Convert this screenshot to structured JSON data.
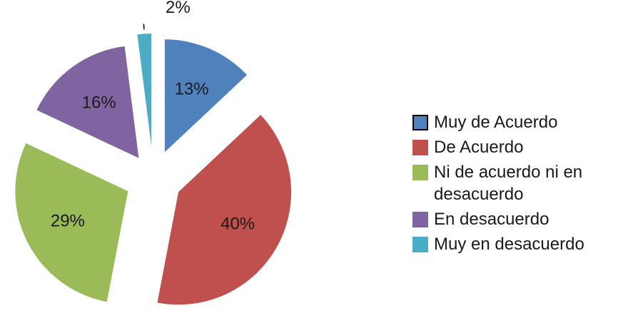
{
  "chart_data": {
    "type": "pie",
    "categories": [
      "Muy de Acuerdo",
      "De Acuerdo",
      "Ni de acuerdo ni en desacuerdo",
      "En desacuerdo",
      "Muy en desacuerdo"
    ],
    "values": [
      13,
      40,
      29,
      16,
      2
    ],
    "value_labels": [
      "13%",
      "40%",
      "29%",
      "16%",
      "2%"
    ],
    "colors": [
      "#4f81bd",
      "#c0504d",
      "#9bbb59",
      "#8064a2",
      "#4bacc6"
    ],
    "exploded": true,
    "legend": "right"
  }
}
